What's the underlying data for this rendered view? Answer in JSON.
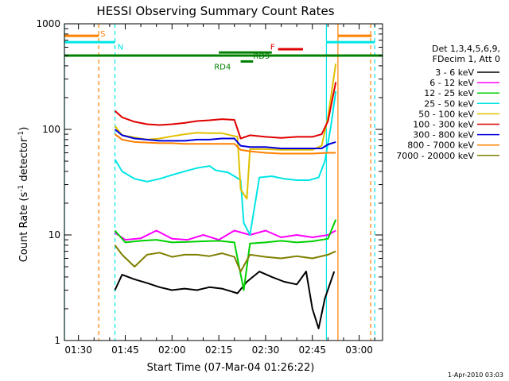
{
  "chart_data": {
    "type": "line",
    "title": "HESSI Observing Summary Count Rates",
    "xlabel": "Start Time (07-Mar-04 01:26:22)",
    "ylabel_main": "Count Rate (s",
    "ylabel_sup1": "-1",
    "ylabel_mid": " detector",
    "ylabel_sup2": "-1",
    "ylabel_end": ")",
    "yscale": "log",
    "ylim": [
      1,
      1000
    ],
    "xlim_minutes": [
      85.5,
      187.5
    ],
    "xticks": [
      {
        "label": "01:30",
        "min": 90
      },
      {
        "label": "01:45",
        "min": 105
      },
      {
        "label": "02:00",
        "min": 120
      },
      {
        "label": "02:15",
        "min": 135
      },
      {
        "label": "02:30",
        "min": 150
      },
      {
        "label": "02:45",
        "min": 165
      },
      {
        "label": "03:00",
        "min": 180
      }
    ],
    "yticks": [
      {
        "label": "1",
        "v": 1
      },
      {
        "label": "10",
        "v": 10
      },
      {
        "label": "100",
        "v": 100
      },
      {
        "label": "1000",
        "v": 1000
      }
    ],
    "legend_header": [
      "Det 1,3,4,5,6,9,",
      "FDecim 1, Att 0"
    ],
    "series": [
      {
        "name": "3 - 6 keV",
        "color": "#000000",
        "points": [
          [
            101.7,
            3.0
          ],
          [
            104,
            4.2
          ],
          [
            108,
            3.8
          ],
          [
            112,
            3.5
          ],
          [
            116,
            3.2
          ],
          [
            120,
            3.0
          ],
          [
            124,
            3.1
          ],
          [
            128,
            3.0
          ],
          [
            132,
            3.2
          ],
          [
            136,
            3.1
          ],
          [
            141,
            2.8
          ],
          [
            144,
            3.6
          ],
          [
            148,
            4.5
          ],
          [
            152,
            4.0
          ],
          [
            156,
            3.6
          ],
          [
            160,
            3.4
          ],
          [
            163,
            4.5
          ],
          [
            165,
            2.0
          ],
          [
            167,
            1.3
          ],
          [
            169,
            2.5
          ],
          [
            172,
            4.5
          ]
        ]
      },
      {
        "name": "6 - 12 keV",
        "color": "#ff00ff",
        "points": [
          [
            101.7,
            10.5
          ],
          [
            105,
            9.0
          ],
          [
            110,
            9.3
          ],
          [
            115,
            11.0
          ],
          [
            120,
            9.2
          ],
          [
            125,
            9.0
          ],
          [
            130,
            10.0
          ],
          [
            135,
            9.0
          ],
          [
            140,
            11.0
          ],
          [
            145,
            10.0
          ],
          [
            150,
            11.0
          ],
          [
            155,
            9.5
          ],
          [
            160,
            10.0
          ],
          [
            165,
            9.5
          ],
          [
            170,
            10.0
          ],
          [
            172.5,
            11
          ]
        ]
      },
      {
        "name": "12 - 25 keV",
        "color": "#00d000",
        "points": [
          [
            101.7,
            11.0
          ],
          [
            105,
            8.5
          ],
          [
            110,
            8.8
          ],
          [
            115,
            9.0
          ],
          [
            120,
            8.5
          ],
          [
            125,
            8.6
          ],
          [
            130,
            8.7
          ],
          [
            135,
            8.8
          ],
          [
            140,
            8.5
          ],
          [
            143,
            3.0
          ],
          [
            145,
            8.3
          ],
          [
            150,
            8.5
          ],
          [
            155,
            8.8
          ],
          [
            160,
            8.5
          ],
          [
            165,
            8.7
          ],
          [
            170,
            9.2
          ],
          [
            172.5,
            14
          ]
        ]
      },
      {
        "name": "25 - 50 keV",
        "color": "#00e5e5",
        "points": [
          [
            101.7,
            52
          ],
          [
            104,
            40
          ],
          [
            108,
            34
          ],
          [
            112,
            32
          ],
          [
            116,
            34
          ],
          [
            120,
            37
          ],
          [
            124,
            40
          ],
          [
            128,
            43
          ],
          [
            132,
            45
          ],
          [
            134,
            41
          ],
          [
            138,
            39
          ],
          [
            140,
            36
          ],
          [
            142,
            33
          ],
          [
            143,
            13
          ],
          [
            145,
            10
          ],
          [
            148,
            35
          ],
          [
            152,
            36
          ],
          [
            156,
            34
          ],
          [
            160,
            33
          ],
          [
            164,
            33
          ],
          [
            167,
            35
          ],
          [
            169,
            50
          ],
          [
            171,
            110
          ],
          [
            172.5,
            230
          ]
        ]
      },
      {
        "name": "50 - 100 keV",
        "color": "#e0c000",
        "points": [
          [
            101.7,
            108
          ],
          [
            104,
            88
          ],
          [
            108,
            84
          ],
          [
            112,
            80
          ],
          [
            116,
            82
          ],
          [
            120,
            86
          ],
          [
            124,
            90
          ],
          [
            128,
            93
          ],
          [
            132,
            92
          ],
          [
            136,
            92
          ],
          [
            141,
            85
          ],
          [
            142,
            27
          ],
          [
            144,
            22
          ],
          [
            145,
            65
          ],
          [
            150,
            65
          ],
          [
            155,
            64
          ],
          [
            160,
            64
          ],
          [
            165,
            64
          ],
          [
            168,
            70
          ],
          [
            170,
            130
          ],
          [
            172.5,
            420
          ]
        ]
      },
      {
        "name": "100 - 300 keV",
        "color": "#e00000",
        "points": [
          [
            101.7,
            150
          ],
          [
            104,
            130
          ],
          [
            108,
            118
          ],
          [
            112,
            112
          ],
          [
            116,
            110
          ],
          [
            120,
            112
          ],
          [
            124,
            115
          ],
          [
            128,
            120
          ],
          [
            132,
            122
          ],
          [
            136,
            125
          ],
          [
            140,
            123
          ],
          [
            142,
            82
          ],
          [
            145,
            88
          ],
          [
            150,
            85
          ],
          [
            155,
            83
          ],
          [
            160,
            85
          ],
          [
            165,
            85
          ],
          [
            168,
            90
          ],
          [
            170,
            120
          ],
          [
            172.5,
            280
          ]
        ]
      },
      {
        "name": "300 - 800 keV",
        "color": "#0000dd",
        "points": [
          [
            101.7,
            100
          ],
          [
            104,
            88
          ],
          [
            108,
            82
          ],
          [
            112,
            80
          ],
          [
            116,
            78
          ],
          [
            120,
            78
          ],
          [
            124,
            78
          ],
          [
            128,
            80
          ],
          [
            132,
            80
          ],
          [
            136,
            82
          ],
          [
            140,
            82
          ],
          [
            142,
            70
          ],
          [
            145,
            68
          ],
          [
            150,
            68
          ],
          [
            155,
            66
          ],
          [
            160,
            66
          ],
          [
            165,
            66
          ],
          [
            168,
            66
          ],
          [
            170,
            72
          ],
          [
            172.5,
            76
          ]
        ]
      },
      {
        "name": "800 - 7000 keV",
        "color": "#ff8000",
        "points": [
          [
            101.7,
            90
          ],
          [
            104,
            80
          ],
          [
            108,
            76
          ],
          [
            112,
            75
          ],
          [
            116,
            74
          ],
          [
            120,
            74
          ],
          [
            124,
            73
          ],
          [
            128,
            73
          ],
          [
            132,
            73
          ],
          [
            136,
            73
          ],
          [
            140,
            73
          ],
          [
            142,
            64
          ],
          [
            145,
            62
          ],
          [
            150,
            60
          ],
          [
            155,
            59
          ],
          [
            160,
            59
          ],
          [
            165,
            59
          ],
          [
            170,
            60
          ],
          [
            172.5,
            60
          ]
        ]
      },
      {
        "name": "7000 - 20000 keV",
        "color": "#808000",
        "points": [
          [
            101.7,
            8.0
          ],
          [
            104,
            6.5
          ],
          [
            108,
            5.0
          ],
          [
            112,
            6.5
          ],
          [
            116,
            6.8
          ],
          [
            120,
            6.2
          ],
          [
            124,
            6.5
          ],
          [
            128,
            6.5
          ],
          [
            132,
            6.3
          ],
          [
            136,
            6.7
          ],
          [
            140,
            6.2
          ],
          [
            142,
            4.5
          ],
          [
            145,
            6.5
          ],
          [
            150,
            6.2
          ],
          [
            155,
            6.0
          ],
          [
            160,
            6.3
          ],
          [
            165,
            6.0
          ],
          [
            170,
            6.5
          ],
          [
            172.5,
            7
          ]
        ]
      }
    ],
    "markers": [
      {
        "label": "S",
        "color": "#ff8000",
        "min": 96.5,
        "style": "dashed",
        "bar_x": [
          85.5,
          96.5
        ],
        "bar_y": 770,
        "label_min": 97.0,
        "label_y": 810
      },
      {
        "label": "N",
        "color": "#00e5e5",
        "min": 101.7,
        "style": "dashed",
        "bar_x": [
          85.5,
          101.7
        ],
        "bar_y": 670,
        "label_min": 102.5,
        "label_y": 610
      },
      {
        "label": "F",
        "color": "#e00000",
        "bar_x": [
          154.0,
          162.0
        ],
        "bar_y": 575,
        "label_min": 151.5,
        "label_y": 610
      },
      {
        "label": "RD9",
        "color": "#008000",
        "bar_x": [
          135.0,
          152.0
        ],
        "bar_y": 535,
        "label_min": 146.0,
        "label_y": 500
      },
      {
        "label": "RD4",
        "color": "#008000",
        "bar_x": [
          142.0,
          146.0
        ],
        "bar_y": 440,
        "label_min": 133.5,
        "label_y": 395
      }
    ],
    "saa_bar": {
      "color": "#008000",
      "y": 500,
      "x": [
        85.5,
        187.5
      ]
    },
    "vlines": [
      {
        "min": 85.5,
        "color": "#00e5e5",
        "style": "solid"
      },
      {
        "min": 96.5,
        "color": "#ff8000",
        "style": "dashed"
      },
      {
        "min": 101.7,
        "color": "#00e5e5",
        "style": "dashed"
      },
      {
        "min": 169.5,
        "color": "#00e5e5",
        "style": "solid"
      },
      {
        "min": 173.2,
        "color": "#ff8000",
        "style": "solid"
      },
      {
        "min": 183.7,
        "color": "#ff8000",
        "style": "dashed"
      },
      {
        "min": 185.0,
        "color": "#00e5e5",
        "style": "dashed"
      }
    ],
    "right_segments": [
      {
        "color": "#ff8000",
        "x": [
          173.2,
          184.0
        ],
        "y": 770
      },
      {
        "color": "#00e5e5",
        "x": [
          169.5,
          185.0
        ],
        "y": 670
      }
    ],
    "grid": false,
    "legend_position": "right"
  },
  "footer": {
    "timestamp": "1-Apr-2010 03:03"
  }
}
